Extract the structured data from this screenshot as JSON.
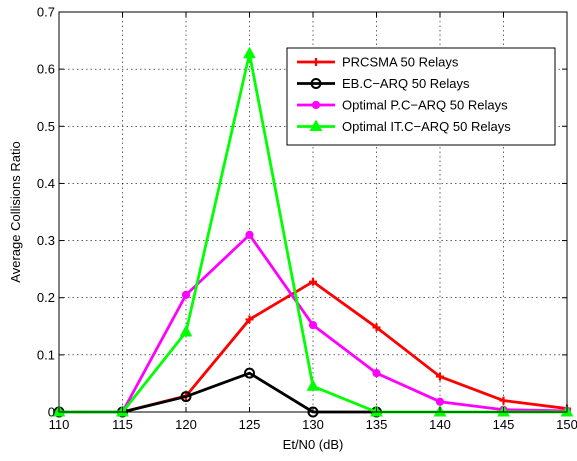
{
  "chart_data": {
    "type": "line",
    "xlabel": "Et/N0 (dB)",
    "ylabel": "Average Collisions Ratio",
    "xlim": [
      110,
      150
    ],
    "ylim": [
      0,
      0.7
    ],
    "xticks": [
      "110",
      "115",
      "120",
      "125",
      "130",
      "135",
      "140",
      "145",
      "150"
    ],
    "yticks": [
      "0",
      "0.1",
      "0.2",
      "0.3",
      "0.4",
      "0.5",
      "0.6",
      "0.7"
    ],
    "grid": true,
    "legend_position": "top-right",
    "series": [
      {
        "name": "PRCSMA 50 Relays",
        "color": "#ff0000",
        "marker": "plus",
        "x": [
          110,
          115,
          120,
          125,
          130,
          135,
          140,
          145,
          150
        ],
        "y": [
          0,
          0,
          0.028,
          0.162,
          0.228,
          0.148,
          0.062,
          0.02,
          0.006
        ]
      },
      {
        "name": "EB.C−ARQ 50 Relays",
        "color": "#000000",
        "marker": "circle",
        "x": [
          110,
          115,
          120,
          125,
          130,
          135
        ],
        "y": [
          0,
          0,
          0.027,
          0.068,
          0,
          0
        ]
      },
      {
        "name": "Optimal P.C−ARQ 50 Relays",
        "color": "#ff00ff",
        "marker": "dot",
        "x": [
          110,
          115,
          120,
          125,
          130,
          135,
          140,
          145,
          150
        ],
        "y": [
          0,
          0,
          0.205,
          0.31,
          0.152,
          0.068,
          0.018,
          0.004,
          0.002
        ]
      },
      {
        "name": "Optimal IT.C−ARQ 50 Relays",
        "color": "#00ff00",
        "marker": "triangle",
        "x": [
          110,
          115,
          120,
          125,
          130,
          135,
          140,
          145,
          150
        ],
        "y": [
          0,
          0,
          0.14,
          0.627,
          0.045,
          0,
          0,
          0,
          0
        ]
      }
    ]
  }
}
